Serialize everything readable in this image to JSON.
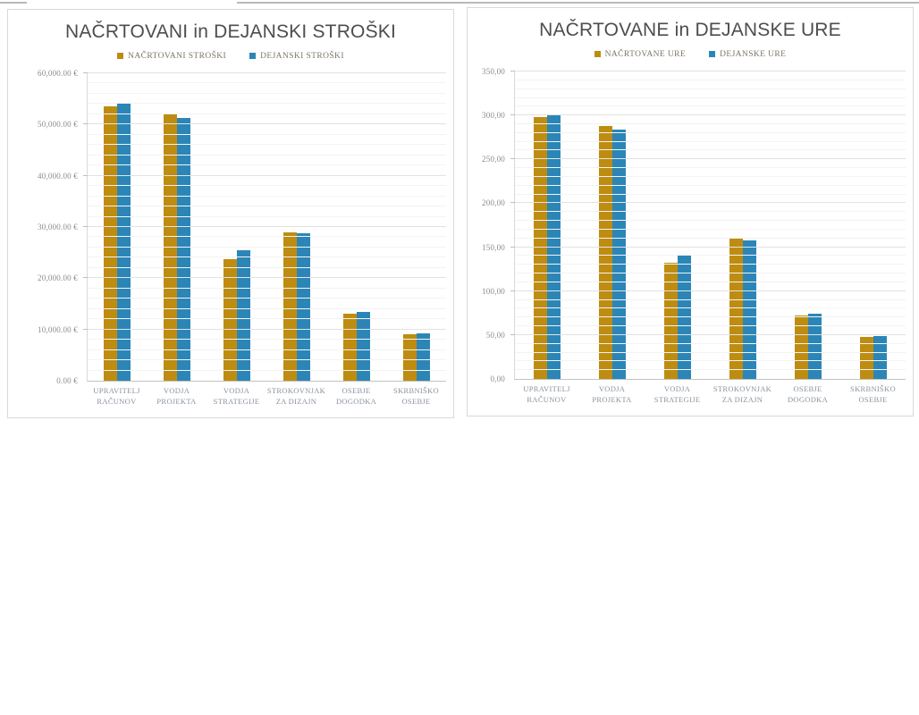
{
  "colors": {
    "planned_gold": "#BE8C10",
    "actual_blue": "#2B86B7",
    "title_text": "#4d4d4d",
    "axis_text": "#8b8b85",
    "category_text": "#8a93a0",
    "gridline_major": "#e2e2e2",
    "gridline_minor": "#f3f3f3",
    "panel_border": "#d9d9d9"
  },
  "chart_data": [
    {
      "type": "bar",
      "title": "NAČRTOVANI in DEJANSKI STROŠKI",
      "categories": [
        "UPRAVITELJ\nRAČUNOV",
        "VODJA\nPROJEKTA",
        "VODJA\nSTRATEGIJE",
        "STROKOVNJAK\nZA DIZAJN",
        "OSEBJE\nDOGODKA",
        "SKRBNIŠKO\nOSEBJE"
      ],
      "series": [
        {
          "name": "NAČRTOVANI STROŠKI",
          "color": "#BE8C10",
          "values": [
            53600,
            52000,
            23800,
            29000,
            13100,
            9000
          ]
        },
        {
          "name": "DEJANSKI STROŠKI",
          "color": "#2B86B7",
          "values": [
            54100,
            51200,
            25500,
            28800,
            13500,
            9200
          ]
        }
      ],
      "ylabel": "",
      "xlabel": "",
      "ylim": [
        0,
        60000
      ],
      "major_step": 10000,
      "minor_step": 2000,
      "ytick_labels": [
        "60,000.00 €",
        "50,000.00 €",
        "40,000.00 €",
        "30,000.00 €",
        "20,000.00 €",
        "10,000.00 €",
        "0.00 €"
      ],
      "legend_position": "top",
      "grid": true
    },
    {
      "type": "bar",
      "title": "NAČRTOVANE in DEJANSKE URE",
      "categories": [
        "UPRAVITELJ\nRAČUNOV",
        "VODJA PROJEKTA",
        "VODJA\nSTRATEGIJE",
        "STROKOVNJAK\nZA DIZAJN",
        "OSEBJE\nDOGODKA",
        "SKRBNIŠKO\nOSEBJE"
      ],
      "series": [
        {
          "name": "NAČRTOVANE URE",
          "color": "#BE8C10",
          "values": [
            298,
            288,
            132,
            160,
            72,
            48
          ]
        },
        {
          "name": "DEJANSKE URE",
          "color": "#2B86B7",
          "values": [
            300,
            284,
            141,
            158,
            74,
            49
          ]
        }
      ],
      "ylabel": "",
      "xlabel": "",
      "ylim": [
        0,
        350
      ],
      "major_step": 50,
      "minor_step": 10,
      "ytick_labels": [
        "350,00",
        "300,00",
        "250,00",
        "200,00",
        "150,00",
        "100,00",
        "50,00",
        "0,00"
      ],
      "legend_position": "top",
      "grid": true
    }
  ]
}
